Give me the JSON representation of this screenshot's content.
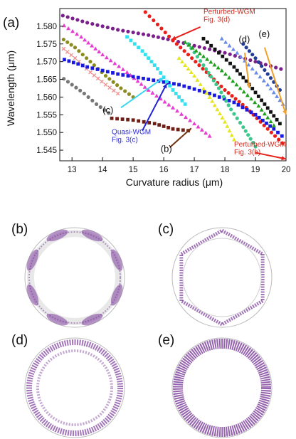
{
  "panel_labels": {
    "a": "(a)",
    "b": "(b)",
    "c": "(c)",
    "d": "(d)",
    "e": "(e)"
  },
  "colors": {
    "red": "#e8201a",
    "purple": "#7a1f8c",
    "olive": "#8c8c1e",
    "gray": "#777777",
    "salmon": "#f08a8a",
    "blue": "#1919e0",
    "magenta": "#e63cd2",
    "cyan": "#33e0f0",
    "brown": "#6e1e14",
    "yellow": "#e6e61e",
    "black": "#111111",
    "green": "#1ea01e",
    "teal": "#3cc88c",
    "ltblue": "#6a8ce6",
    "navy": "#233c96",
    "arrow_red": "#e8201a",
    "arrow_cyan": "#3cd6f0",
    "arrow_blue": "#2323d6",
    "arrow_brown": "#6e3214",
    "arrow_orange": "#f0a028",
    "ring_mode": "#7a3c9a"
  },
  "chart_data": {
    "type": "scatter",
    "xlabel": "Curvature radius (μm)",
    "ylabel": "Wavelength (μm)",
    "xlim": [
      12.6,
      20.0
    ],
    "ylim": [
      1.542,
      1.585
    ],
    "xticks": [
      13,
      14,
      15,
      16,
      17,
      18,
      19,
      20
    ],
    "yticks": [
      1.545,
      1.55,
      1.555,
      1.56,
      1.565,
      1.57,
      1.575,
      1.58
    ],
    "ytick_labels": [
      "1.545",
      "1.550",
      "1.555",
      "1.560",
      "1.565",
      "1.570",
      "1.575",
      "1.580"
    ],
    "xtick_labels": [
      "13",
      "14",
      "15",
      "16",
      "17",
      "18",
      "19",
      "20"
    ],
    "grid": false,
    "series": [
      {
        "color": "purple",
        "marker": "circle",
        "x": [
          12.7,
          13.5,
          14.5,
          15.5,
          16.3,
          17.0,
          18.0,
          19.0,
          20.0
        ],
        "y": [
          1.583,
          1.581,
          1.579,
          1.5775,
          1.576,
          1.5745,
          1.5725,
          1.57,
          1.5675
        ]
      },
      {
        "color": "red",
        "marker": "circle",
        "x": [
          15.0,
          15.4,
          15.8,
          16.3,
          16.8,
          17.4,
          18.0,
          18.7,
          19.4,
          20.0
        ],
        "y": [
          1.587,
          1.584,
          1.5805,
          1.576,
          1.572,
          1.567,
          1.562,
          1.557,
          1.551,
          1.546
        ]
      },
      {
        "color": "magenta",
        "marker": "triangle",
        "x": [
          12.6,
          13.3,
          14.0,
          14.8,
          15.5,
          16.3,
          17.0,
          17.5
        ],
        "y": [
          1.581,
          1.577,
          1.572,
          1.567,
          1.562,
          1.557,
          1.5525,
          1.549
        ]
      },
      {
        "color": "olive",
        "marker": "circle",
        "x": [
          12.6,
          13.1,
          13.6,
          14.1,
          14.6,
          15.0
        ],
        "y": [
          1.577,
          1.574,
          1.57,
          1.566,
          1.5625,
          1.56
        ]
      },
      {
        "color": "salmon",
        "marker": "cross",
        "x": [
          12.6,
          13.1,
          13.6,
          14.1,
          14.5
        ],
        "y": [
          1.5745,
          1.571,
          1.567,
          1.5635,
          1.561
        ]
      },
      {
        "color": "gray",
        "marker": "circle",
        "x": [
          12.6,
          13.0,
          13.4,
          13.8,
          14.2
        ],
        "y": [
          1.566,
          1.5635,
          1.561,
          1.558,
          1.5555
        ]
      },
      {
        "color": "blue",
        "marker": "square",
        "x": [
          12.6,
          13.5,
          14.5,
          15.5,
          16.5,
          17.5,
          18.3,
          19.0,
          19.6,
          20.0
        ],
        "y": [
          1.571,
          1.5685,
          1.5665,
          1.565,
          1.5635,
          1.561,
          1.5585,
          1.555,
          1.551,
          1.548
        ]
      },
      {
        "color": "cyan",
        "marker": "square",
        "x": [
          14.8,
          15.3,
          15.8,
          16.3,
          16.7
        ],
        "y": [
          1.577,
          1.573,
          1.568,
          1.562,
          1.558
        ]
      },
      {
        "color": "yellow",
        "marker": "triangle",
        "x": [
          16.5,
          17.0,
          17.5,
          18.0,
          18.3
        ],
        "y": [
          1.571,
          1.566,
          1.56,
          1.553,
          1.548
        ]
      },
      {
        "color": "brown",
        "marker": "square",
        "x": [
          14.3,
          15.0,
          15.7,
          16.3,
          16.8
        ],
        "y": [
          1.554,
          1.5535,
          1.5525,
          1.551,
          1.5505
        ]
      },
      {
        "color": "teal",
        "marker": "circle",
        "x": [
          16.8,
          17.3,
          17.8,
          18.2,
          18.6,
          19.0
        ],
        "y": [
          1.575,
          1.569,
          1.5625,
          1.5565,
          1.5515,
          1.546
        ]
      },
      {
        "color": "green",
        "marker": "triangle",
        "x": [
          16.7,
          17.3,
          17.9,
          18.5,
          19.1,
          19.6
        ],
        "y": [
          1.5755,
          1.5715,
          1.5675,
          1.5625,
          1.5575,
          1.552
        ]
      },
      {
        "color": "black",
        "marker": "square",
        "x": [
          17.3,
          17.8,
          18.3,
          18.8,
          19.3,
          19.8
        ],
        "y": [
          1.5765,
          1.5725,
          1.5685,
          1.5635,
          1.558,
          1.5525
        ]
      },
      {
        "color": "ltblue",
        "marker": "triangle",
        "x": [
          17.9,
          18.4,
          18.9,
          19.4,
          19.9
        ],
        "y": [
          1.5765,
          1.5725,
          1.568,
          1.5635,
          1.558
        ]
      },
      {
        "color": "navy",
        "marker": "circle",
        "x": [
          18.6,
          19.0,
          19.4,
          19.8
        ],
        "y": [
          1.575,
          1.571,
          1.5665,
          1.562
        ]
      }
    ],
    "annotations": [
      {
        "label": "Perturbed-WGM\nFig. 3(d)",
        "color": "arrow_red",
        "text_class": "ann-red",
        "text_at": [
          17.3,
          1.5835
        ],
        "arrow_from": [
          17.2,
          1.5798
        ],
        "arrow_to": [
          16.25,
          1.5762
        ]
      },
      {
        "label": "(d)",
        "color": "arrow_orange",
        "text_class": "ann-k",
        "text_at": [
          18.45,
          1.5755
        ],
        "arrow_from": [
          18.65,
          1.5725
        ],
        "arrow_to": [
          18.8,
          1.5625
        ]
      },
      {
        "label": "(e)",
        "color": "arrow_orange",
        "text_class": "ann-k",
        "text_at": [
          19.1,
          1.577
        ],
        "arrow_from": [
          19.3,
          1.574
        ],
        "arrow_to": [
          20.0,
          1.555
        ]
      },
      {
        "label": "(c)",
        "color": "arrow_cyan",
        "text_class": "ann-k",
        "text_at": [
          14.0,
          1.5555
        ],
        "arrow_from": [
          14.6,
          1.557
        ],
        "arrow_to": [
          16.0,
          1.5655
        ]
      },
      {
        "label": "Quasi-WGM\nFig. 3(c)",
        "color": "arrow_blue",
        "text_class": "ann-blue",
        "text_at": [
          14.3,
          1.5495
        ],
        "arrow_from": [
          15.3,
          1.5505
        ],
        "arrow_to": [
          16.1,
          1.5638
        ]
      },
      {
        "label": "(b)",
        "color": "arrow_brown",
        "text_class": "ann-k",
        "text_at": [
          15.9,
          1.5445
        ],
        "arrow_from": [
          16.2,
          1.5458
        ],
        "arrow_to": [
          16.9,
          1.5512
        ]
      },
      {
        "label": "Perturbed-WGM\nFig. 3(b)",
        "color": "arrow_red",
        "text_class": "ann-red",
        "text_at": [
          18.3,
          1.546
        ],
        "arrow_from": [
          19.0,
          1.5443
        ],
        "arrow_to": [
          20.0,
          1.5425
        ]
      }
    ]
  }
}
